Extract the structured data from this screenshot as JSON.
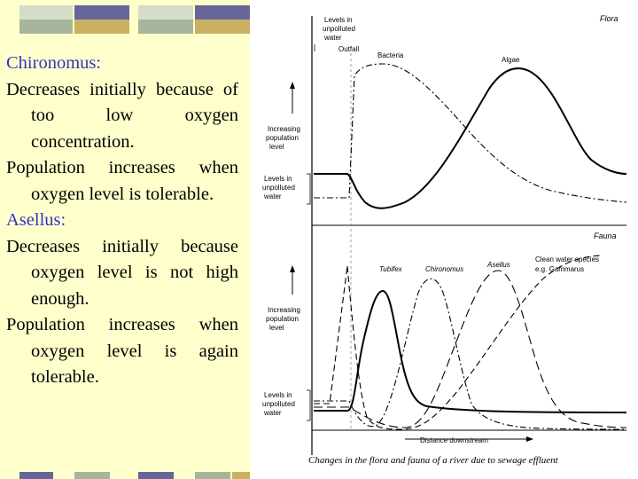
{
  "colors": {
    "panel_bg": "#ffffcc",
    "heading": "#3333cc",
    "stripe_green": "#a7b69a",
    "stripe_blue": "#666699",
    "stripe_gold": "#c9b062",
    "stripe_light": "#d5dcc7"
  },
  "slide_text": {
    "chironomus_heading": "Chironomus:",
    "chironomus_p1": "Decreases initially because of too low oxygen concentration.",
    "chironomus_p2": "Population increases when oxygen level is tolerable.",
    "asellus_heading": "Asellus:",
    "asellus_p1": "Decreases initially because oxygen level is not high enough.",
    "asellus_p2": "Population increases when oxygen level is again tolerable."
  },
  "figure": {
    "flora_title": "Flora",
    "fauna_title": "Fauna",
    "unpolluted_top_1": "Levels in",
    "unpolluted_top_2": "unpolluted",
    "unpolluted_top_3": "water",
    "outfall": "Outfall",
    "bacteria": "Bacteria",
    "algae": "Algae",
    "increasing_1": "Increasing",
    "increasing_2": "population",
    "increasing_3": "level",
    "levels_1": "Levels in",
    "levels_2": "unpolluted",
    "levels_3": "water",
    "tubifex": "Tubifex",
    "chironomus": "Chironomus",
    "asellus": "Asellus",
    "clean_1": "Clean water species",
    "clean_2": "e.g. Gammarus",
    "distance": "Distance downstream",
    "caption": "Changes in the flora and fauna of a river due to sewage effluent"
  }
}
